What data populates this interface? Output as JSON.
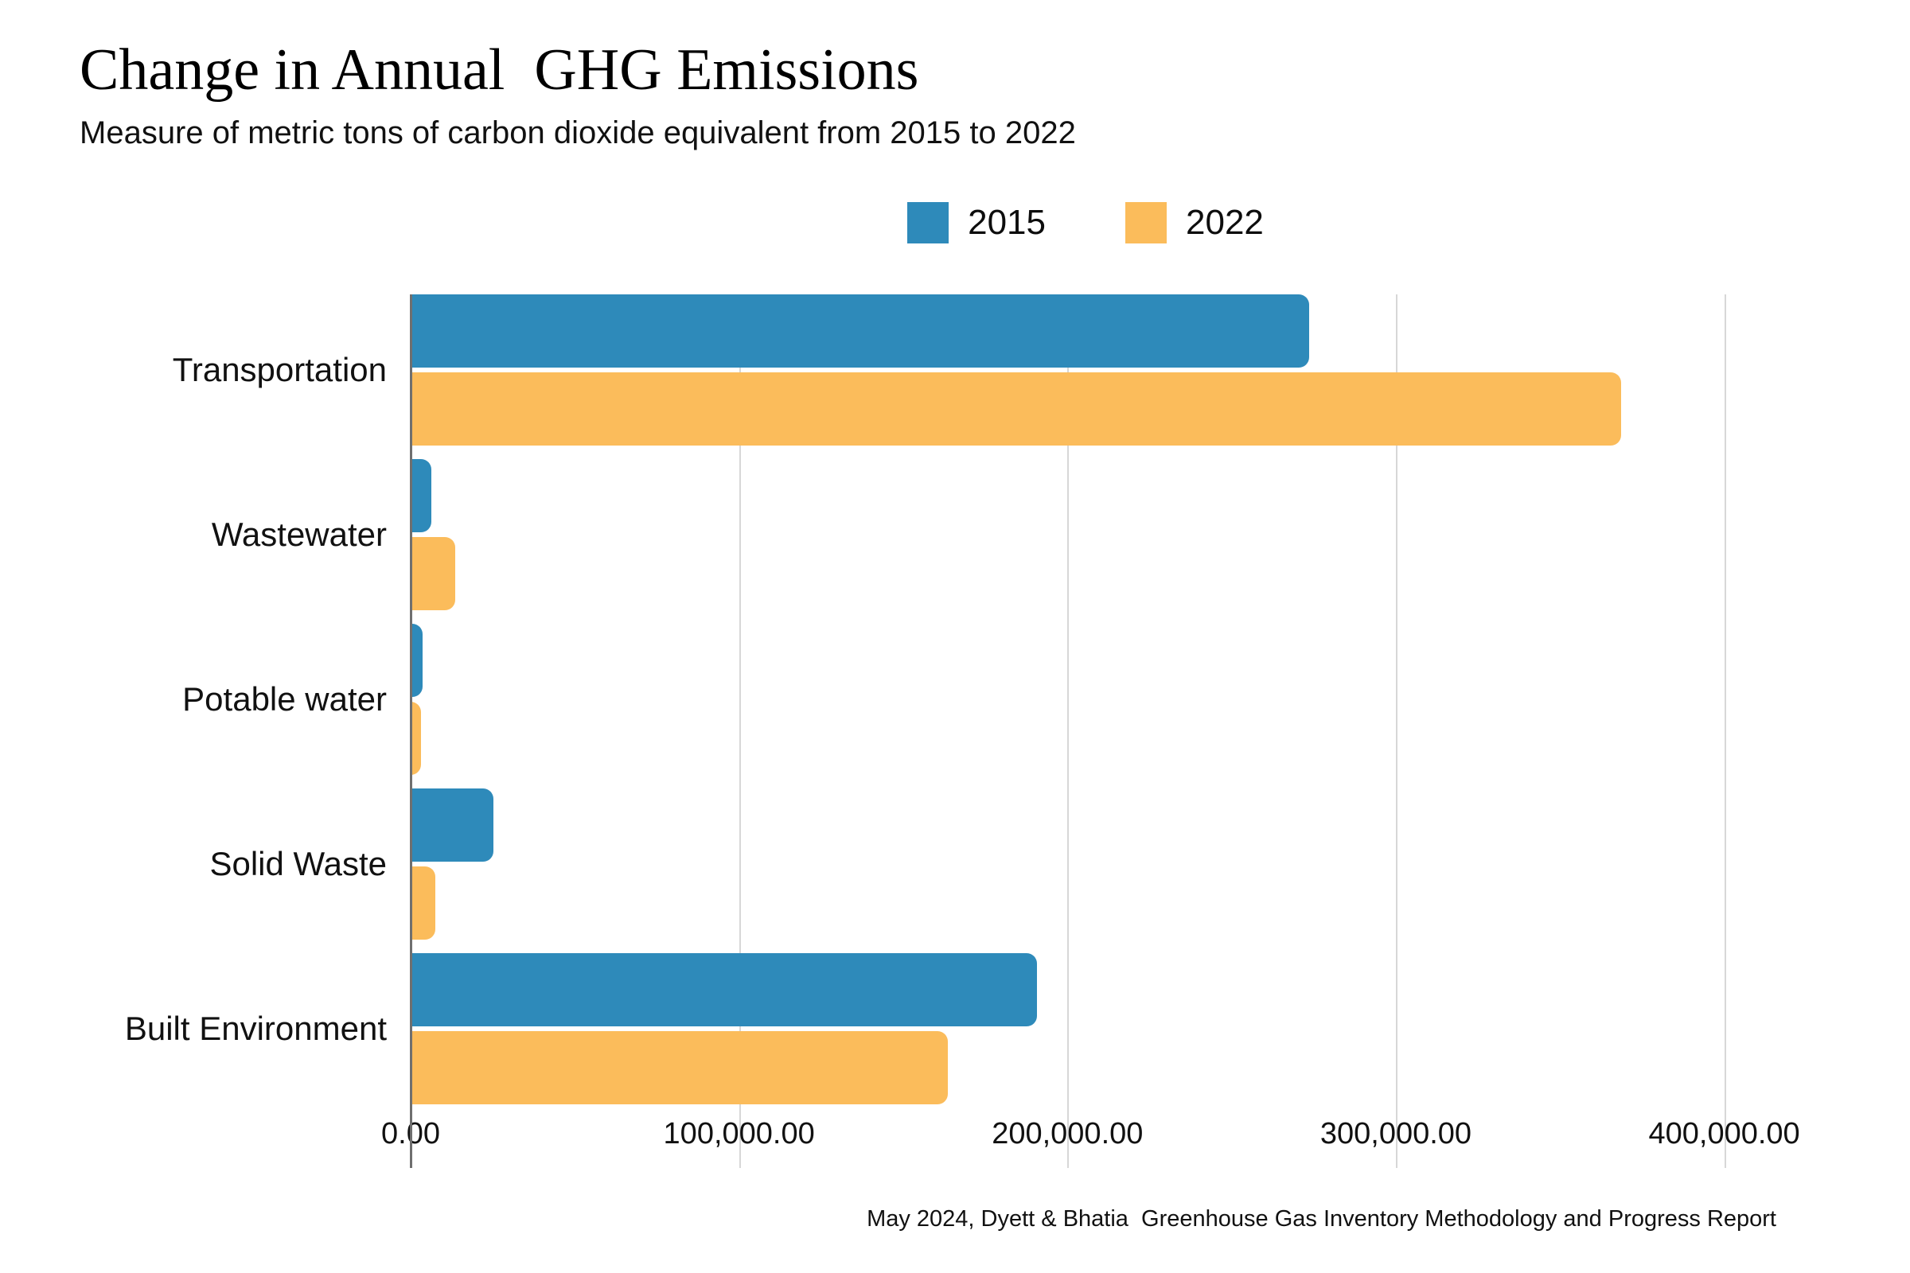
{
  "title": "Change in Annual  GHG Emissions",
  "subtitle": "Measure of metric tons of carbon dioxide equivalent from 2015 to 2022",
  "footer": "May 2024, Dyett & Bhatia  Greenhouse Gas Inventory Methodology and Progress Report",
  "colors": {
    "series_2015": "#2E8ABA",
    "series_2022": "#FBBC5B",
    "gridline": "#D7D7D7",
    "axis_line": "#6F6F6F",
    "background": "#FFFFFF"
  },
  "chart_data": {
    "type": "bar",
    "orientation": "horizontal",
    "title": "Change in Annual  GHG Emissions",
    "subtitle": "Measure of metric tons of carbon dioxide equivalent from 2015 to 2022",
    "xlabel": "",
    "ylabel": "",
    "units": "metric tons CO2e",
    "grid": "vertical",
    "legend_position": "top-center",
    "categories": [
      "Transportation",
      "Wastewater",
      "Potable water",
      "Solid Waste",
      "Built Environment"
    ],
    "series": [
      {
        "name": "2015",
        "color": "#2E8ABA",
        "values": [
          273500,
          6300,
          3600,
          25200,
          190800
        ]
      },
      {
        "name": "2022",
        "color": "#FBBC5B",
        "values": [
          368600,
          13600,
          3100,
          7500,
          163600
        ]
      }
    ],
    "x_ticks": [
      {
        "value": 0,
        "label": "0.00"
      },
      {
        "value": 100000,
        "label": "100,000.00"
      },
      {
        "value": 200000,
        "label": "200,000.00"
      },
      {
        "value": 300000,
        "label": "300,000.00"
      },
      {
        "value": 400000,
        "label": "400,000.00"
      }
    ],
    "xlim": [
      0,
      411000
    ]
  }
}
